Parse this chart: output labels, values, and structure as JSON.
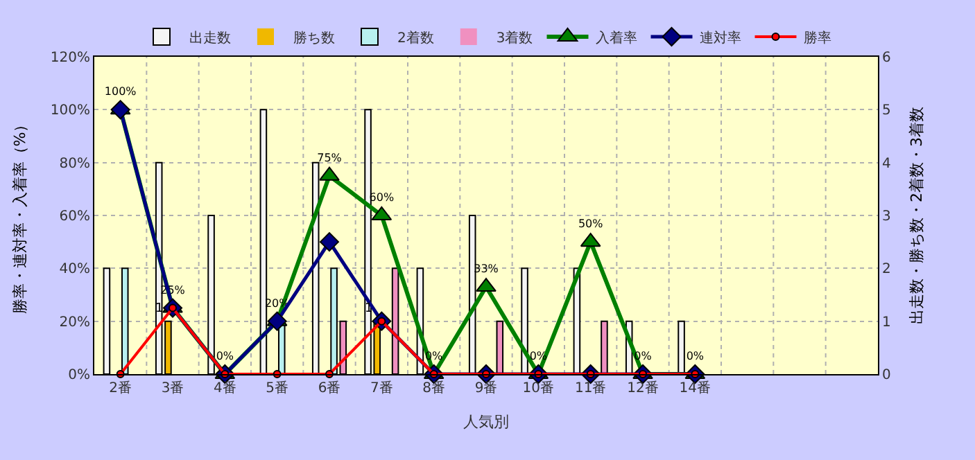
{
  "chart_data": {
    "type": "bar",
    "xlabel": "人気別",
    "ylabel": "勝率・連対率・入着率（%）",
    "y2label": "出走数・勝ち数・2着数・3着数",
    "categories": [
      "2番",
      "3番",
      "4番",
      "5番",
      "6番",
      "7番",
      "8番",
      "9番",
      "10番",
      "11番",
      "12番",
      "14番",
      null,
      null,
      null
    ],
    "series": [
      {
        "name": "出走数",
        "axis": "y2",
        "color": "#f4f4f4",
        "values": [
          2,
          4,
          3,
          5,
          4,
          5,
          2,
          3,
          2,
          2,
          1,
          1,
          null,
          null,
          null
        ]
      },
      {
        "name": "勝ち数",
        "axis": "y2",
        "color": "#f0b800",
        "values": [
          0,
          1,
          0,
          0,
          0,
          1,
          0,
          0,
          0,
          0,
          0,
          0,
          null,
          null,
          null
        ],
        "value_labels": [
          null,
          "1",
          null,
          null,
          null,
          "1",
          null,
          null,
          null,
          null,
          null,
          null,
          null,
          null,
          null
        ]
      },
      {
        "name": "2着数",
        "axis": "y2",
        "color": "#b8f0f0",
        "values": [
          2,
          0,
          0,
          1,
          2,
          0,
          0,
          0,
          0,
          0,
          0,
          0,
          null,
          null,
          null
        ]
      },
      {
        "name": "3着数",
        "axis": "y2",
        "color": "#f090c0",
        "values": [
          0,
          0,
          0,
          0,
          1,
          2,
          0,
          1,
          0,
          1,
          0,
          0,
          null,
          null,
          null
        ]
      },
      {
        "name": "入着率",
        "type": "line",
        "marker": "triangle",
        "color": "#008000",
        "values": [
          100,
          25,
          0,
          20,
          75,
          60,
          0,
          33,
          0,
          50,
          0,
          0,
          null,
          null,
          null
        ],
        "value_labels": [
          "100%",
          "25%",
          "0%",
          "20%",
          "75%",
          "60%",
          "0%",
          "33%",
          "0%",
          "50%",
          "0%",
          "0%",
          null,
          null,
          null
        ]
      },
      {
        "name": "連対率",
        "type": "line",
        "marker": "diamond",
        "color": "#000080",
        "values": [
          100,
          25,
          0,
          20,
          50,
          20,
          0,
          0,
          0,
          0,
          0,
          0,
          null,
          null,
          null
        ]
      },
      {
        "name": "勝率",
        "type": "line",
        "marker": "circle",
        "color": "#ff0000",
        "values": [
          0,
          25,
          0,
          0,
          0,
          20,
          0,
          0,
          0,
          0,
          0,
          0,
          null,
          null,
          null
        ]
      }
    ],
    "ylim": [
      0,
      120
    ],
    "yticks": [
      {
        "value": 0,
        "label": "0%"
      },
      {
        "value": 20,
        "label": "20%"
      },
      {
        "value": 40,
        "label": "40%"
      },
      {
        "value": 60,
        "label": "60%"
      },
      {
        "value": 80,
        "label": "80%"
      },
      {
        "value": 100,
        "label": "100%"
      },
      {
        "value": 120,
        "label": "120%"
      }
    ],
    "y2lim": [
      0,
      6
    ],
    "y2ticks": [
      0,
      1,
      2,
      3,
      4,
      5,
      6
    ],
    "grid": true,
    "legend": "top",
    "line_style": "solid"
  }
}
